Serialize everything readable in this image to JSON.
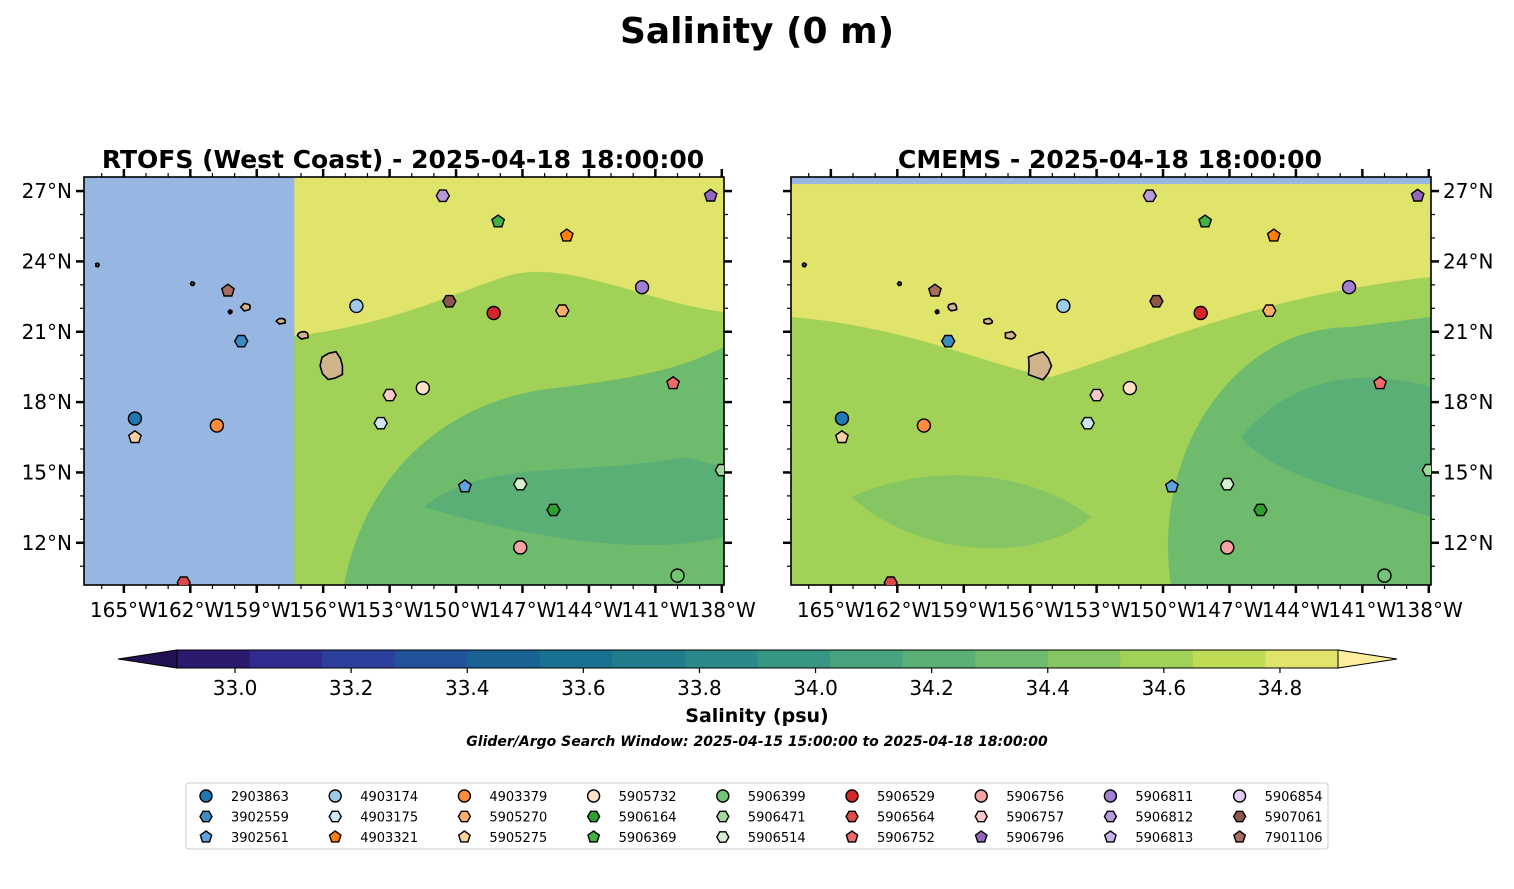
{
  "figure_title": "Salinity (0 m)",
  "panels": [
    {
      "title": "RTOFS (West Coast) - 2025-04-18 18:00:00",
      "lat_label_side": "left",
      "masked_region": {
        "lon_max": -157.3
      },
      "masked_north_lat": null
    },
    {
      "title": "CMEMS - 2025-04-18 18:00:00",
      "lat_label_side": "right",
      "masked_region": null,
      "masked_north_lat": 27.3
    }
  ],
  "map_extent": {
    "lon_min": -166.8,
    "lon_max": -137.9,
    "lat_min": 10.2,
    "lat_max": 27.6
  },
  "lon_ticks": [
    "165°W",
    "162°W",
    "159°W",
    "156°W",
    "153°W",
    "150°W",
    "147°W",
    "144°W",
    "141°W",
    "138°W"
  ],
  "lon_tick_values": [
    -165,
    -162,
    -159,
    -156,
    -153,
    -150,
    -147,
    -144,
    -141,
    -138
  ],
  "lat_ticks": [
    "27°N",
    "24°N",
    "21°N",
    "18°N",
    "15°N",
    "12°N"
  ],
  "lat_tick_values": [
    27,
    24,
    21,
    18,
    15,
    12
  ],
  "colorbar": {
    "label": "Salinity (psu)",
    "min": 32.9,
    "max": 34.9,
    "step": 0.1,
    "tick_values": [
      33.0,
      33.2,
      33.4,
      33.6,
      33.8,
      34.0,
      34.2,
      34.4,
      34.6,
      34.8
    ],
    "tick_labels": [
      "33.0",
      "33.2",
      "33.4",
      "33.6",
      "33.8",
      "34.0",
      "34.2",
      "34.4",
      "34.6",
      "34.8"
    ],
    "colors": [
      "#2b1a6e",
      "#302b8f",
      "#2d3f9c",
      "#22529a",
      "#1b6294",
      "#1a7091",
      "#217d8d",
      "#2b8a89",
      "#389684",
      "#48a37e",
      "#5aaf76",
      "#6ebb6d",
      "#86c662",
      "#a2d158",
      "#c0dc55",
      "#e0e46b"
    ],
    "under_color": "#221254",
    "over_color": "#fdee9e",
    "mask_color": "#98b6e2"
  },
  "search_window": "Glider/Argo Search Window: 2025-04-15 15:00:00 to 2025-04-18 18:00:00",
  "islands": [
    {
      "lon": -155.6,
      "lat": 19.55,
      "color": "#d2b48c"
    },
    {
      "lon": -156.9,
      "lat": 20.85,
      "color": "#d2b48c"
    },
    {
      "lon": -157.9,
      "lat": 21.45,
      "color": "#d2b48c"
    },
    {
      "lon": -159.5,
      "lat": 22.05,
      "color": "#d2b48c"
    },
    {
      "lon": -160.2,
      "lat": 21.85,
      "color": "#000000"
    },
    {
      "lon": -166.2,
      "lat": 23.85,
      "color": "#555555"
    },
    {
      "lon": -161.9,
      "lat": 23.05,
      "color": "#555555"
    }
  ],
  "legend": {
    "entries": [
      {
        "id": "2903863",
        "color": "#1f77b4",
        "marker": "circle",
        "lon": -164.5,
        "lat": 17.3
      },
      {
        "id": "3902559",
        "color": "#3b8cc2",
        "marker": "hexagon",
        "lon": -159.7,
        "lat": 20.6
      },
      {
        "id": "3902561",
        "color": "#5fa2dd",
        "marker": "pentagon",
        "lon": -149.6,
        "lat": 14.4
      },
      {
        "id": "4903174",
        "color": "#9ecae9",
        "marker": "circle",
        "lon": -154.5,
        "lat": 22.1
      },
      {
        "id": "4903175",
        "color": "#d0e6f5",
        "marker": "hexagon",
        "lon": -153.4,
        "lat": 17.1
      },
      {
        "id": "4903321",
        "color": "#ff7f0e",
        "marker": "pentagon",
        "lon": -145.0,
        "lat": 25.1
      },
      {
        "id": "4903379",
        "color": "#fd8d3c",
        "marker": "circle",
        "lon": -160.8,
        "lat": 17.0
      },
      {
        "id": "5905270",
        "color": "#fdae6b",
        "marker": "hexagon",
        "lon": -145.2,
        "lat": 21.9
      },
      {
        "id": "5905275",
        "color": "#fdd0a2",
        "marker": "pentagon",
        "lon": -164.5,
        "lat": 16.5
      },
      {
        "id": "5905732",
        "color": "#fde0c5",
        "marker": "circle",
        "lon": -151.5,
        "lat": 18.6
      },
      {
        "id": "5906164",
        "color": "#2ca02c",
        "marker": "hexagon",
        "lon": -145.6,
        "lat": 13.4
      },
      {
        "id": "5906369",
        "color": "#41b144",
        "marker": "pentagon",
        "lon": -148.1,
        "lat": 25.7
      },
      {
        "id": "5906399",
        "color": "#74c476",
        "marker": "circle",
        "lon": -140.0,
        "lat": 10.6
      },
      {
        "id": "5906471",
        "color": "#a1d99b",
        "marker": "hexagon",
        "lon": -138.0,
        "lat": 15.1
      },
      {
        "id": "5906514",
        "color": "#d4f2cf",
        "marker": "hexagon",
        "lon": -147.1,
        "lat": 14.5
      },
      {
        "id": "5906529",
        "color": "#d62728",
        "marker": "circle",
        "lon": -148.3,
        "lat": 21.8
      },
      {
        "id": "5906564",
        "color": "#de4a4a",
        "marker": "hexagon",
        "lon": -162.3,
        "lat": 10.3
      },
      {
        "id": "5906752",
        "color": "#ef6b6b",
        "marker": "pentagon",
        "lon": -140.2,
        "lat": 18.8
      },
      {
        "id": "5906756",
        "color": "#f4a3a3",
        "marker": "circle",
        "lon": -147.1,
        "lat": 11.8
      },
      {
        "id": "5906757",
        "color": "#f9c9c9",
        "marker": "hexagon",
        "lon": -153.0,
        "lat": 18.3
      },
      {
        "id": "5906796",
        "color": "#9467bd",
        "marker": "pentagon",
        "lon": -138.5,
        "lat": 26.8
      },
      {
        "id": "5906811",
        "color": "#a27fd0",
        "marker": "circle",
        "lon": -141.6,
        "lat": 22.9
      },
      {
        "id": "5906812",
        "color": "#b69ad9",
        "marker": "hexagon",
        "lon": -150.6,
        "lat": 26.8
      },
      {
        "id": "5906813",
        "color": "#c9b3e8",
        "marker": "pentagon",
        "lon": -143.5,
        "lat": 27.8
      },
      {
        "id": "5906854",
        "color": "#e0cdf5",
        "marker": "circle",
        "lon": -142.0,
        "lat": 10.0
      },
      {
        "id": "5907061",
        "color": "#8c564b",
        "marker": "hexagon",
        "lon": -150.3,
        "lat": 22.3
      },
      {
        "id": "7901106",
        "color": "#a56e5f",
        "marker": "pentagon",
        "lon": -160.3,
        "lat": 22.75
      }
    ]
  }
}
